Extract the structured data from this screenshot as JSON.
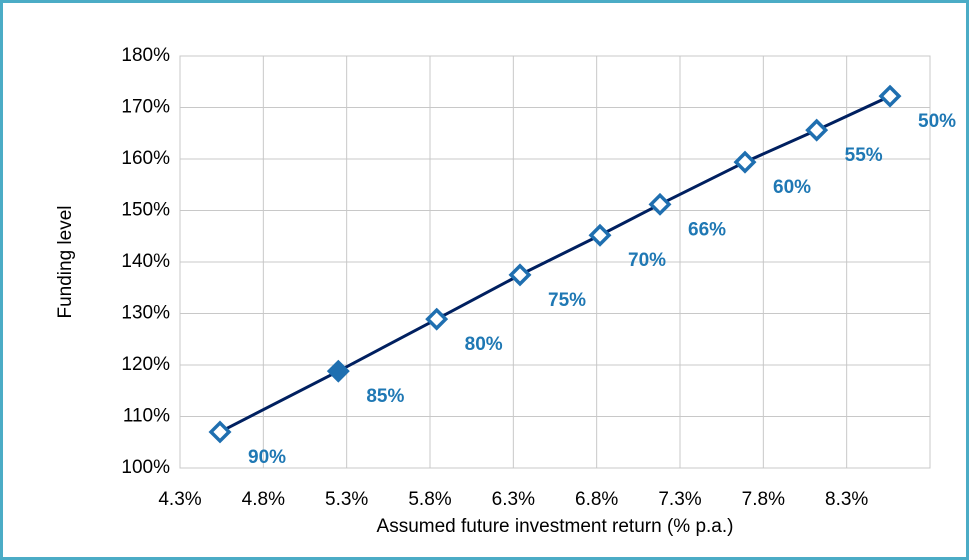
{
  "chart_data": {
    "type": "line",
    "xlabel": "Assumed future investment return (% p.a.)",
    "ylabel": "Funding level",
    "x": [
      4.54,
      5.25,
      5.84,
      6.34,
      6.82,
      7.18,
      7.69,
      8.12,
      8.56
    ],
    "series": [
      {
        "name": "Funding level",
        "color": "#002060",
        "marker_color": "#1f6fb0",
        "values": [
          107.0,
          118.8,
          128.9,
          137.5,
          145.2,
          151.2,
          159.4,
          165.6,
          172.2
        ],
        "point_labels": [
          "90%",
          "85%",
          "80%",
          "75%",
          "70%",
          "66%",
          "60%",
          "55%",
          "50%"
        ],
        "highlight_index": 1
      }
    ],
    "xlim": [
      4.3,
      8.8
    ],
    "xticks": [
      {
        "value": 4.3,
        "label": "4.3%"
      },
      {
        "value": 4.8,
        "label": "4.8%"
      },
      {
        "value": 5.3,
        "label": "5.3%"
      },
      {
        "value": 5.8,
        "label": "5.8%"
      },
      {
        "value": 6.3,
        "label": "6.3%"
      },
      {
        "value": 6.8,
        "label": "6.8%"
      },
      {
        "value": 7.3,
        "label": "7.3%"
      },
      {
        "value": 7.8,
        "label": "7.8%"
      },
      {
        "value": 8.3,
        "label": "8.3%"
      }
    ],
    "ylim": [
      100,
      180
    ],
    "yticks": [
      {
        "value": 100,
        "label": "100%"
      },
      {
        "value": 110,
        "label": "110%"
      },
      {
        "value": 120,
        "label": "120%"
      },
      {
        "value": 130,
        "label": "130%"
      },
      {
        "value": 140,
        "label": "140%"
      },
      {
        "value": 150,
        "label": "150%"
      },
      {
        "value": 160,
        "label": "160%"
      },
      {
        "value": 170,
        "label": "170%"
      },
      {
        "value": 180,
        "label": "180%"
      }
    ],
    "grid": true
  }
}
